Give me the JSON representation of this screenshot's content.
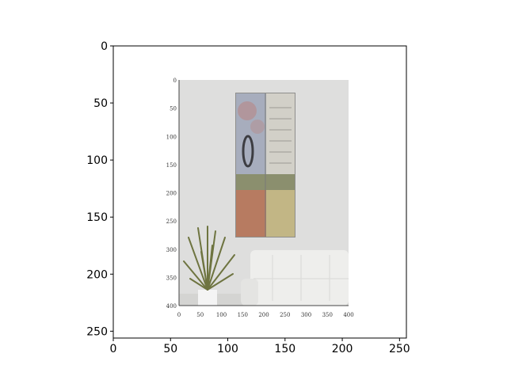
{
  "chart_data": {
    "type": "image",
    "title": "",
    "xlabel": "",
    "ylabel": "",
    "xlim": [
      0,
      256
    ],
    "ylim": [
      256,
      0
    ],
    "x_ticks": [
      "0",
      "50",
      "100",
      "150",
      "200",
      "250"
    ],
    "y_ticks": [
      "0",
      "50",
      "100",
      "150",
      "200",
      "250"
    ],
    "inset_image": {
      "x_ticks": [
        "0",
        "50",
        "100",
        "150",
        "200",
        "250",
        "300",
        "350",
        "400"
      ],
      "y_ticks": [
        "0",
        "50",
        "100",
        "150",
        "200",
        "250",
        "300",
        "350",
        "400"
      ],
      "content": "photo of a living room wall with a tall framed art panel, a potted plant at lower left and a white tufted sofa at lower right"
    }
  },
  "colors": {
    "wall": "#dededd",
    "floor": "#d4d4d2",
    "frame": "#8e8e8c",
    "art_sky": "#a7adbd",
    "art_blossom": "#b48f91",
    "art_sage": "#8b8f6e",
    "art_copper": "#b77b61",
    "art_gold": "#c2b685",
    "art_building": "#d2d0c8",
    "sofa": "#eeeeec",
    "plant": "#6e7440",
    "pot": "#f4f4f4"
  }
}
